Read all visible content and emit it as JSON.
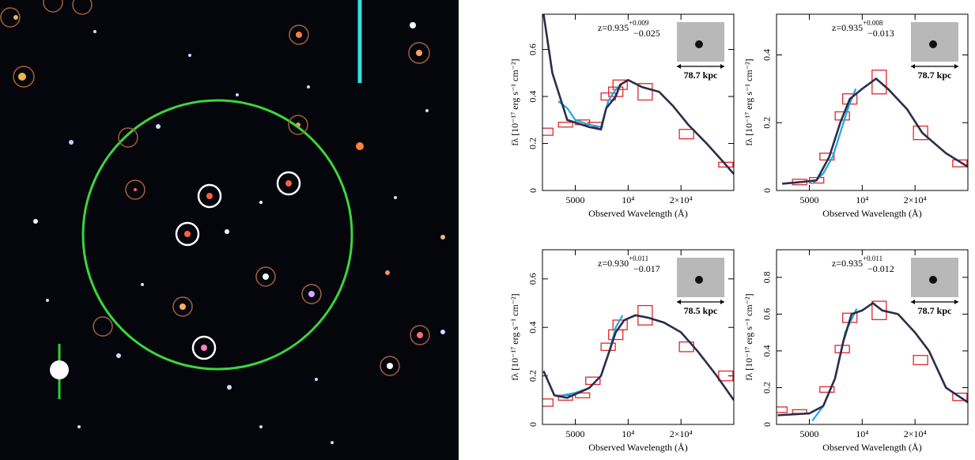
{
  "chart_data": [
    {
      "type": "line",
      "xscale": "log",
      "xlim": [
        3250,
        40000
      ],
      "ylim": [
        0,
        0.75
      ],
      "xticks": [
        5000,
        {
          "value": 10000,
          "label": "10⁴"
        },
        {
          "value": 20000,
          "label": "2×10⁴"
        }
      ],
      "yticks": [
        0,
        0.2,
        0.4,
        0.6
      ],
      "xlabel": "Observed Wavelength (Å)",
      "ylabel": "fλ [10⁻¹⁷ erg s⁻¹ cm⁻²]",
      "redshift": "z=0.935",
      "z_err_plus": "+0.009",
      "z_err_minus": "−0.025",
      "scale_label": "78.7 kpc",
      "model": {
        "color": "#2b2d4a",
        "x": [
          3300,
          3700,
          4500,
          6000,
          7000,
          7500,
          8500,
          9000,
          10000,
          12000,
          15000,
          18000,
          22000,
          28000,
          35000,
          40000
        ],
        "values": [
          0.75,
          0.5,
          0.3,
          0.27,
          0.26,
          0.35,
          0.4,
          0.45,
          0.47,
          0.44,
          0.42,
          0.36,
          0.28,
          0.2,
          0.12,
          0.07
        ]
      },
      "spectrum": {
        "color": "#1ca7e6",
        "x": [
          4000,
          4500,
          5000,
          6000,
          7000,
          7700,
          8500,
          9200
        ],
        "values": [
          0.38,
          0.35,
          0.3,
          0.28,
          0.27,
          0.38,
          0.43,
          0.45
        ]
      },
      "photometry": {
        "color": "#e0272a",
        "x": [
          3400,
          4400,
          5500,
          6500,
          7700,
          8500,
          9000,
          12500,
          21500,
          36000
        ],
        "values": [
          0.25,
          0.28,
          0.29,
          0.28,
          0.4,
          0.42,
          0.45,
          0.42,
          0.24,
          0.11
        ],
        "errors": [
          0.015,
          0.01,
          0.01,
          0.01,
          0.015,
          0.02,
          0.02,
          0.035,
          0.02,
          0.01
        ]
      }
    },
    {
      "type": "line",
      "xscale": "log",
      "xlim": [
        3250,
        40000
      ],
      "ylim": [
        0,
        0.52
      ],
      "xticks": [
        5000,
        {
          "value": 10000,
          "label": "10⁴"
        },
        {
          "value": 20000,
          "label": "2×10⁴"
        }
      ],
      "yticks": [
        0,
        0.2,
        0.4
      ],
      "xlabel": "Observed Wavelength (Å)",
      "ylabel": "fλ [10⁻¹⁷ erg s⁻¹ cm⁻²]",
      "redshift": "z=0.935",
      "z_err_plus": "+0.008",
      "z_err_minus": "−0.013",
      "scale_label": "78.7 kpc",
      "model": {
        "color": "#2b2d4a",
        "x": [
          3500,
          4500,
          5500,
          6500,
          7500,
          8500,
          10000,
          12000,
          14000,
          18000,
          22000,
          30000,
          40000
        ],
        "values": [
          0.02,
          0.025,
          0.03,
          0.1,
          0.2,
          0.27,
          0.3,
          0.33,
          0.3,
          0.24,
          0.17,
          0.11,
          0.07
        ]
      },
      "spectrum": {
        "color": "#1ca7e6",
        "x": [
          5200,
          6000,
          6800,
          7600,
          8400,
          9200
        ],
        "values": [
          0.02,
          0.05,
          0.1,
          0.18,
          0.25,
          0.3
        ]
      },
      "photometry": {
        "color": "#e0272a",
        "x": [
          4400,
          5500,
          6300,
          7700,
          8500,
          12500,
          21500,
          36000
        ],
        "values": [
          0.025,
          0.03,
          0.1,
          0.22,
          0.27,
          0.32,
          0.17,
          0.08
        ],
        "errors": [
          0.008,
          0.008,
          0.01,
          0.012,
          0.015,
          0.035,
          0.02,
          0.01
        ]
      }
    },
    {
      "type": "line",
      "xscale": "log",
      "xlim": [
        3250,
        40000
      ],
      "ylim": [
        0,
        0.72
      ],
      "xticks": [
        5000,
        {
          "value": 10000,
          "label": "10⁴"
        },
        {
          "value": 20000,
          "label": "2×10⁴"
        }
      ],
      "yticks": [
        0,
        0.2,
        0.4,
        0.6
      ],
      "xlabel": "Observed Wavelength (Å)",
      "ylabel": "fλ [10⁻¹⁷ erg s⁻¹ cm⁻²]",
      "redshift": "z=0.930",
      "z_err_plus": "+0.011",
      "z_err_minus": "−0.017",
      "scale_label": "78.5 kpc",
      "model": {
        "color": "#2b2d4a",
        "x": [
          3300,
          3800,
          4500,
          6000,
          7000,
          7800,
          8500,
          9500,
          11000,
          13000,
          16000,
          20000,
          25000,
          32000,
          40000
        ],
        "values": [
          0.22,
          0.12,
          0.11,
          0.15,
          0.2,
          0.3,
          0.38,
          0.43,
          0.45,
          0.44,
          0.42,
          0.38,
          0.3,
          0.2,
          0.1
        ]
      },
      "spectrum": {
        "color": "#1ca7e6",
        "x": [
          4200,
          5000,
          6000,
          7000,
          7800,
          8500,
          9300
        ],
        "values": [
          0.12,
          0.13,
          0.15,
          0.2,
          0.3,
          0.4,
          0.45
        ]
      },
      "photometry": {
        "color": "#e0272a",
        "x": [
          3400,
          4400,
          5500,
          6300,
          7700,
          8500,
          9000,
          12500,
          21500,
          36000
        ],
        "values": [
          0.09,
          0.11,
          0.12,
          0.18,
          0.32,
          0.37,
          0.41,
          0.45,
          0.32,
          0.2
        ],
        "errors": [
          0.015,
          0.01,
          0.01,
          0.015,
          0.015,
          0.02,
          0.02,
          0.04,
          0.02,
          0.02
        ]
      }
    },
    {
      "type": "line",
      "xscale": "log",
      "xlim": [
        3250,
        40000
      ],
      "ylim": [
        0,
        0.95
      ],
      "xticks": [
        5000,
        {
          "value": 10000,
          "label": "10⁴"
        },
        {
          "value": 20000,
          "label": "2×10⁴"
        }
      ],
      "yticks": [
        0,
        0.2,
        0.4,
        0.6,
        0.8
      ],
      "xlabel": "Observed Wavelength (Å)",
      "ylabel": "fλ [10⁻¹⁷ erg s⁻¹ cm⁻²]",
      "redshift": "z=0.935",
      "z_err_plus": "+0.011",
      "z_err_minus": "−0.012",
      "scale_label": "78.7 kpc",
      "model": {
        "color": "#2b2d4a",
        "x": [
          3300,
          5000,
          6000,
          7000,
          7800,
          8700,
          10000,
          11500,
          13000,
          16000,
          20000,
          24000,
          30000,
          40000
        ],
        "values": [
          0.05,
          0.06,
          0.1,
          0.25,
          0.45,
          0.6,
          0.62,
          0.66,
          0.62,
          0.6,
          0.5,
          0.4,
          0.2,
          0.12
        ]
      },
      "spectrum": {
        "color": "#1ca7e6",
        "x": [
          5200,
          6000,
          7000,
          8000,
          9000,
          9300
        ],
        "values": [
          0.02,
          0.1,
          0.25,
          0.5,
          0.6,
          0.63
        ]
      },
      "photometry": {
        "color": "#e0272a",
        "x": [
          3400,
          4400,
          6300,
          7700,
          8500,
          12500,
          21500,
          36000
        ],
        "values": [
          0.08,
          0.07,
          0.19,
          0.41,
          0.58,
          0.62,
          0.35,
          0.15
        ],
        "errors": [
          0.015,
          0.01,
          0.015,
          0.02,
          0.025,
          0.05,
          0.025,
          0.02
        ]
      }
    }
  ]
}
